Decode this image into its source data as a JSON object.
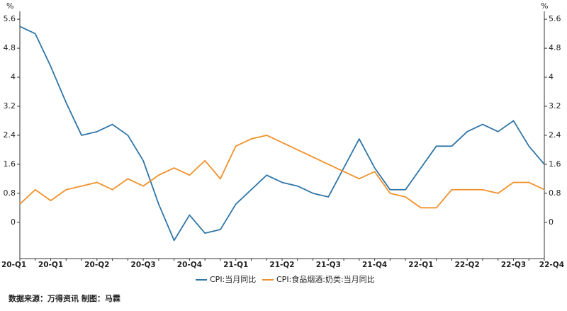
{
  "chart_data": {
    "type": "line",
    "y_unit": "%",
    "y2_unit": "%",
    "categories": [
      "20-Q1",
      null,
      "20-Q1",
      null,
      null,
      "20-Q2",
      null,
      null,
      "20-Q3",
      null,
      null,
      "20-Q4",
      null,
      null,
      "21-Q1",
      null,
      null,
      "21-Q2",
      null,
      null,
      "21-Q3",
      null,
      null,
      "21-Q4",
      null,
      null,
      "22-Q1",
      null,
      null,
      "22-Q2",
      null,
      null,
      "22-Q3",
      null,
      "22-Q4"
    ],
    "series": [
      {
        "name": "CPI:当月同比",
        "color": "#2e75a8",
        "values": [
          5.4,
          5.2,
          4.3,
          3.3,
          2.4,
          2.5,
          2.7,
          2.4,
          1.7,
          0.5,
          -0.5,
          0.2,
          -0.3,
          -0.2,
          0.5,
          0.9,
          1.3,
          1.1,
          1.0,
          0.8,
          0.7,
          1.5,
          2.3,
          1.5,
          0.9,
          0.9,
          1.5,
          2.1,
          2.1,
          2.5,
          2.7,
          2.5,
          2.8,
          2.1,
          1.6
        ]
      },
      {
        "name": "CPI:食品烟酒:奶类:当月同比",
        "color": "#f0912a",
        "axis": "y2",
        "values": [
          0.5,
          0.9,
          0.6,
          0.9,
          1.0,
          1.1,
          0.9,
          1.2,
          1.0,
          1.3,
          1.5,
          1.3,
          1.7,
          1.2,
          2.1,
          2.3,
          2.4,
          2.2,
          2.0,
          1.8,
          1.6,
          1.4,
          1.2,
          1.4,
          0.8,
          0.7,
          0.4,
          0.4,
          0.9,
          0.9,
          0.9,
          0.8,
          1.1,
          1.1,
          0.9
        ]
      }
    ],
    "ylim": [
      -1,
      5.7
    ],
    "yticks": [
      0,
      0.8,
      1.6,
      2.4,
      3.2,
      4,
      4.8,
      5.6
    ],
    "y2lim": [
      -1,
      5.7
    ],
    "y2ticks": [
      0,
      0.8,
      1.6,
      2.4,
      3.2,
      4,
      4.8,
      5.6
    ],
    "grid": false,
    "source": "数据来源：万得资讯 制图：马霖"
  }
}
